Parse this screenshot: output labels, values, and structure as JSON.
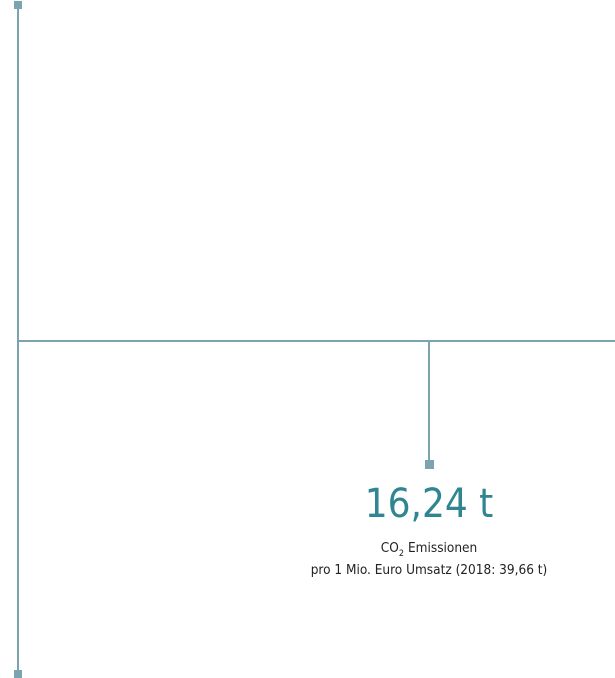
{
  "figure": {
    "value": "16,24 t",
    "label_main": "CO",
    "label_sub": "2",
    "label_rest": "Emissionen",
    "description": "pro 1 Mio. Euro Umsatz (2018: 39,66 t)"
  }
}
